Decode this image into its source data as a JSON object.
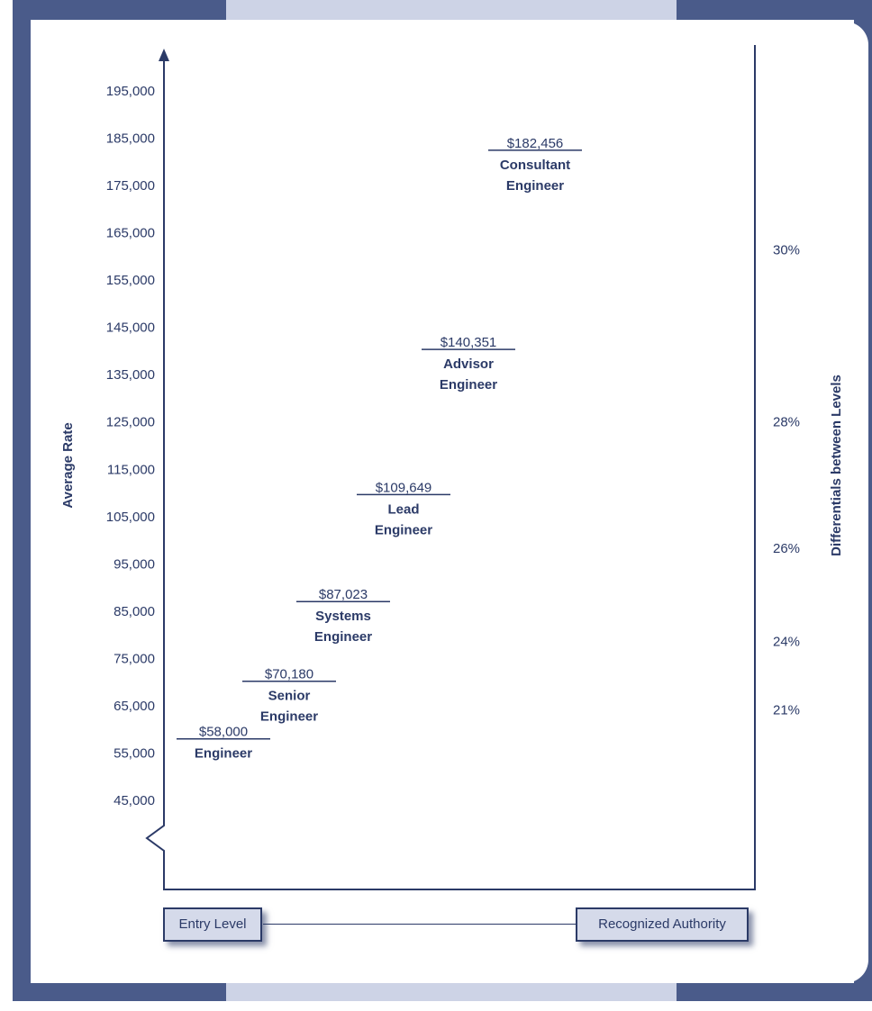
{
  "chart_data": {
    "type": "scatter",
    "ylabel": "Average Rate",
    "y2label": "Differentials between Levels",
    "yticks": [
      45000,
      55000,
      65000,
      75000,
      85000,
      95000,
      105000,
      115000,
      125000,
      135000,
      145000,
      155000,
      165000,
      175000,
      185000,
      195000
    ],
    "ytick_labels": [
      "45,000",
      "55,000",
      "65,000",
      "75,000",
      "85,000",
      "95,000",
      "105,000",
      "115,000",
      "125,000",
      "135,000",
      "145,000",
      "155,000",
      "165,000",
      "175,000",
      "185,000",
      "195,000"
    ],
    "ylim": [
      38000,
      200000
    ],
    "axis_break": true,
    "grid": false,
    "points": [
      {
        "value": 58000,
        "value_label": "$58,000",
        "role_lines": [
          "Engineer"
        ]
      },
      {
        "value": 70180,
        "value_label": "$70,180",
        "role_lines": [
          "Senior",
          "Engineer"
        ]
      },
      {
        "value": 87023,
        "value_label": "$87,023",
        "role_lines": [
          "Systems",
          "Engineer"
        ]
      },
      {
        "value": 109649,
        "value_label": "$109,649",
        "role_lines": [
          "Lead",
          "Engineer"
        ]
      },
      {
        "value": 140351,
        "value_label": "$140,351",
        "role_lines": [
          "Advisor",
          "Engineer"
        ]
      },
      {
        "value": 182456,
        "value_label": "$182,456",
        "role_lines": [
          "Consultant",
          "Engineer"
        ]
      }
    ],
    "differentials": [
      "21%",
      "24%",
      "26%",
      "28%",
      "30%"
    ],
    "x_endpoints": {
      "left": "Entry Level",
      "right": "Recognized Authority"
    }
  }
}
